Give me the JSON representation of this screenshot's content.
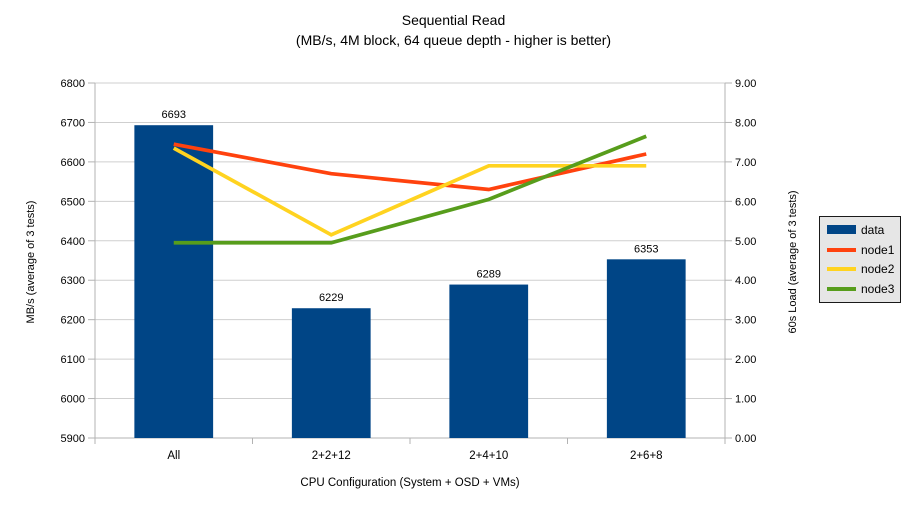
{
  "chart_data": {
    "type": "bar+line",
    "title": "Sequential Read",
    "subtitle": "(MB/s, 4M block, 64 queue depth - higher is better)",
    "xlabel": "CPU Configuration (System + OSD + VMs)",
    "ylabel_left": "MB/s (average of 3 tests)",
    "ylabel_right": "60s Load (average of 3 tests)",
    "categories": [
      "All",
      "2+2+12",
      "2+4+10",
      "2+6+8"
    ],
    "bar_series": {
      "name": "data",
      "axis": "left",
      "color": "#004586",
      "values": [
        6693,
        6229,
        6289,
        6353
      ]
    },
    "line_series": [
      {
        "name": "node1",
        "axis": "right",
        "color": "#FF420E",
        "values": [
          7.45,
          6.7,
          6.3,
          7.2
        ]
      },
      {
        "name": "node2",
        "axis": "right",
        "color": "#FFD320",
        "values": [
          7.35,
          5.15,
          6.9,
          6.9
        ]
      },
      {
        "name": "node3",
        "axis": "right",
        "color": "#579D1C",
        "values": [
          4.95,
          4.95,
          6.05,
          7.65
        ]
      }
    ],
    "axis_left": {
      "min": 5900,
      "max": 6800,
      "step": 100
    },
    "axis_right": {
      "min": 0,
      "max": 9,
      "step": 1,
      "decimals": 2
    },
    "grid": true,
    "legend_position": "right",
    "colors": {
      "grid": "#cfcfcf",
      "axis": "#b3b3b3",
      "text": "#000000",
      "legend_bg": "#e6e6e6",
      "legend_border": "#1a1a1a",
      "background": "#ffffff"
    }
  }
}
